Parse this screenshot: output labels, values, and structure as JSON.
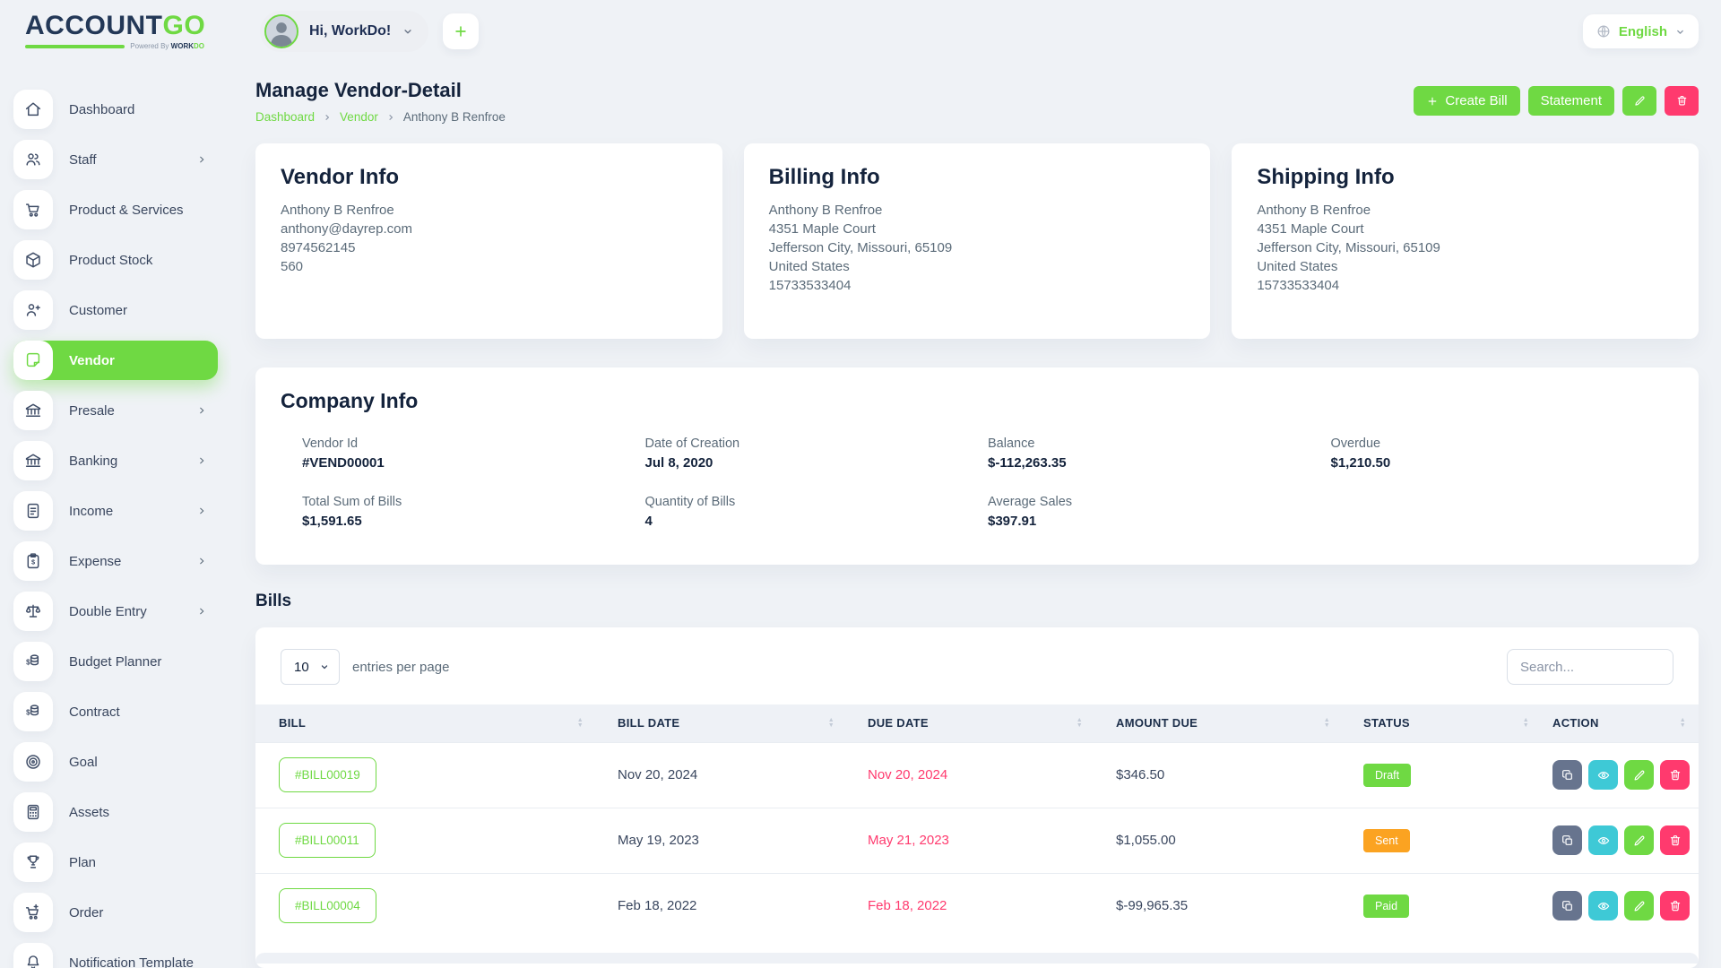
{
  "brand": {
    "name_primary": "ACCOUNT",
    "name_accent": "GO",
    "tagline_prefix": "Powered By",
    "tagline_brand_1": "WORK",
    "tagline_brand_2": "DO"
  },
  "header": {
    "greeting": "Hi, WorkDo!",
    "language": "English"
  },
  "sidebar": {
    "items": [
      {
        "label": "Dashboard",
        "icon": "home",
        "active": false,
        "has_submenu": false
      },
      {
        "label": "Staff",
        "icon": "users",
        "active": false,
        "has_submenu": true
      },
      {
        "label": "Product & Services",
        "icon": "cart",
        "active": false,
        "has_submenu": false
      },
      {
        "label": "Product Stock",
        "icon": "cube",
        "active": false,
        "has_submenu": false
      },
      {
        "label": "Customer",
        "icon": "user-plus",
        "active": false,
        "has_submenu": false
      },
      {
        "label": "Vendor",
        "icon": "note",
        "active": true,
        "has_submenu": false
      },
      {
        "label": "Presale",
        "icon": "bank",
        "active": false,
        "has_submenu": true
      },
      {
        "label": "Banking",
        "icon": "bank",
        "active": false,
        "has_submenu": true
      },
      {
        "label": "Income",
        "icon": "file",
        "active": false,
        "has_submenu": true
      },
      {
        "label": "Expense",
        "icon": "clipboard-dollar",
        "active": false,
        "has_submenu": true
      },
      {
        "label": "Double Entry",
        "icon": "scales",
        "active": false,
        "has_submenu": true
      },
      {
        "label": "Budget Planner",
        "icon": "coins",
        "active": false,
        "has_submenu": false
      },
      {
        "label": "Contract",
        "icon": "coins",
        "active": false,
        "has_submenu": false
      },
      {
        "label": "Goal",
        "icon": "target",
        "active": false,
        "has_submenu": false
      },
      {
        "label": "Assets",
        "icon": "calculator",
        "active": false,
        "has_submenu": false
      },
      {
        "label": "Plan",
        "icon": "trophy",
        "active": false,
        "has_submenu": false
      },
      {
        "label": "Order",
        "icon": "cart-plus",
        "active": false,
        "has_submenu": false
      },
      {
        "label": "Notification Template",
        "icon": "bell",
        "active": false,
        "has_submenu": false
      }
    ]
  },
  "page": {
    "title": "Manage Vendor-Detail",
    "breadcrumb": [
      "Dashboard",
      "Vendor",
      "Anthony B Renfroe"
    ],
    "actions": {
      "create_bill": "Create Bill",
      "statement": "Statement"
    }
  },
  "cards": {
    "vendor_info": {
      "title": "Vendor Info",
      "lines": [
        "Anthony B Renfroe",
        "anthony@dayrep.com",
        "8974562145",
        "560"
      ]
    },
    "billing_info": {
      "title": "Billing Info",
      "lines": [
        "Anthony B Renfroe",
        "4351 Maple Court",
        "Jefferson City, Missouri, 65109",
        "United States",
        "15733533404"
      ]
    },
    "shipping_info": {
      "title": "Shipping Info",
      "lines": [
        "Anthony B Renfroe",
        "4351 Maple Court",
        "Jefferson City, Missouri, 65109",
        "United States",
        "15733533404"
      ]
    }
  },
  "company_info": {
    "title": "Company Info",
    "fields": [
      {
        "label": "Vendor Id",
        "value": "#VEND00001"
      },
      {
        "label": "Date of Creation",
        "value": "Jul 8, 2020"
      },
      {
        "label": "Balance",
        "value": "$-112,263.35"
      },
      {
        "label": "Overdue",
        "value": "$1,210.50"
      },
      {
        "label": "Total Sum of Bills",
        "value": "$1,591.65"
      },
      {
        "label": "Quantity of Bills",
        "value": "4"
      },
      {
        "label": "Average Sales",
        "value": "$397.91"
      }
    ]
  },
  "bills": {
    "heading": "Bills",
    "page_size": "10",
    "entries_label": "entries per page",
    "search_placeholder": "Search...",
    "columns": [
      "BILL",
      "BILL DATE",
      "DUE DATE",
      "AMOUNT DUE",
      "STATUS",
      "ACTION"
    ],
    "rows": [
      {
        "bill": "#BILL00019",
        "bill_date": "Nov 20, 2024",
        "due_date": "Nov 20, 2024",
        "amount_due": "$346.50",
        "status": "Draft",
        "status_color": "#6fd943"
      },
      {
        "bill": "#BILL00011",
        "bill_date": "May 19, 2023",
        "due_date": "May 21, 2023",
        "amount_due": "$1,055.00",
        "status": "Sent",
        "status_color": "#fba321"
      },
      {
        "bill": "#BILL00004",
        "bill_date": "Feb 18, 2022",
        "due_date": "Feb 18, 2022",
        "amount_due": "$-99,965.35",
        "status": "Paid",
        "status_color": "#6fd943"
      }
    ],
    "actions": [
      {
        "icon": "copy",
        "name": "duplicate-button",
        "color": "#67748e"
      },
      {
        "icon": "eye",
        "name": "view-button",
        "color": "#3ec9d6"
      },
      {
        "icon": "pencil",
        "name": "edit-button",
        "color": "#6fd943"
      },
      {
        "icon": "trash",
        "name": "delete-button",
        "color": "#ff3a6e"
      }
    ]
  },
  "colors": {
    "accent_green": "#6fd943",
    "danger_pink": "#ff3a6e",
    "info_cyan": "#3ec9d6",
    "warning_orange": "#fba321",
    "secondary_gray": "#67748e",
    "navy_text": "#1f2f54",
    "page_bg": "#eff2f6"
  }
}
